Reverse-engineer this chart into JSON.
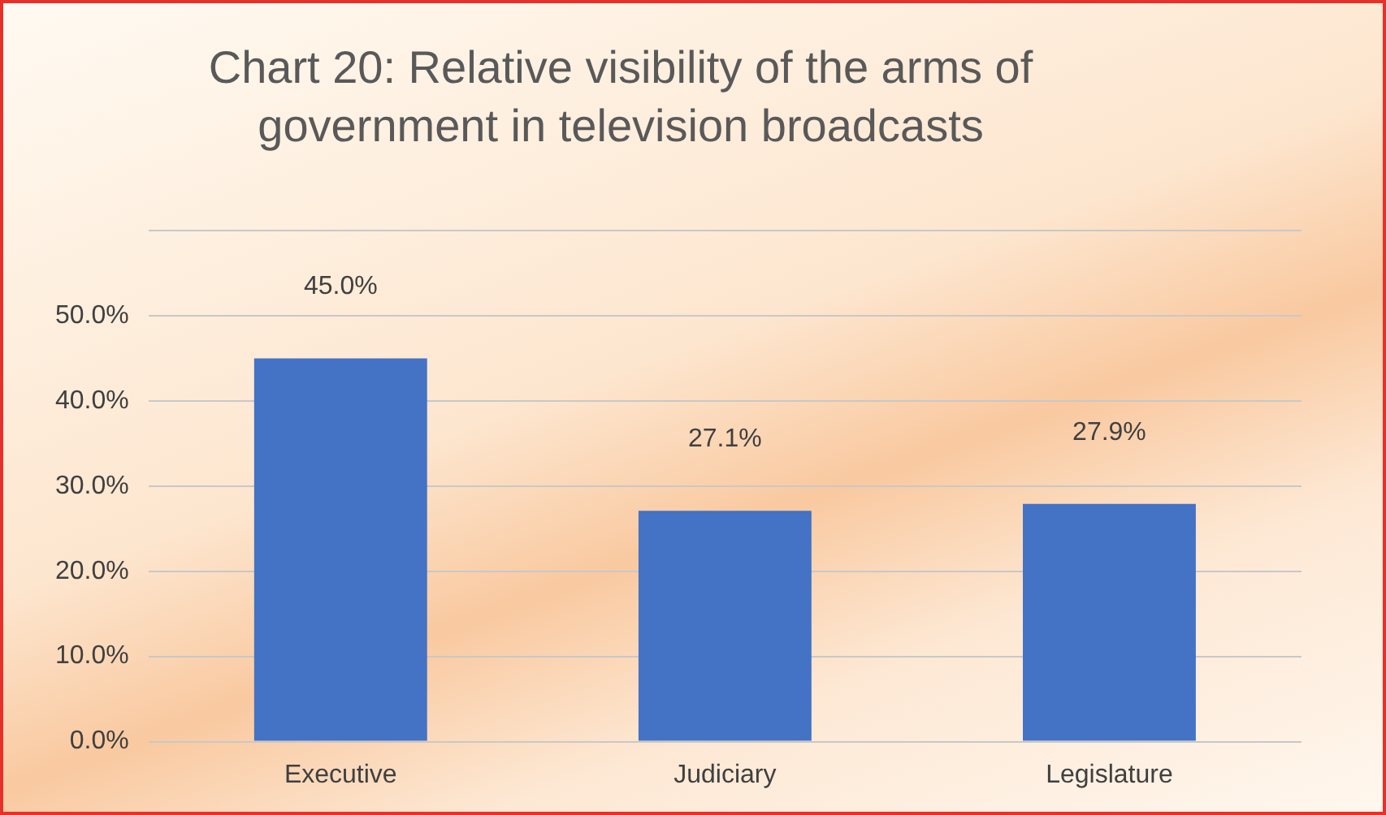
{
  "chart_data": {
    "type": "bar",
    "title": "Chart 20: Relative visibility of the arms of government in television broadcasts",
    "categories": [
      "Executive",
      "Judiciary",
      "Legislature"
    ],
    "values": [
      45.0,
      27.1,
      27.9
    ],
    "value_labels": [
      "45.0%",
      "27.1%",
      "27.9%"
    ],
    "color": "#4472c4",
    "ylim": [
      0,
      60
    ],
    "yticks": [
      {
        "value": 0,
        "label": "0.0%"
      },
      {
        "value": 10,
        "label": "10.0%"
      },
      {
        "value": 20,
        "label": "20.0%"
      },
      {
        "value": 30,
        "label": "30.0%"
      },
      {
        "value": 40,
        "label": "40.0%"
      },
      {
        "value": 50,
        "label": "50.0%"
      },
      {
        "value": 60,
        "label": null
      }
    ],
    "grid": "y",
    "legend": false
  }
}
